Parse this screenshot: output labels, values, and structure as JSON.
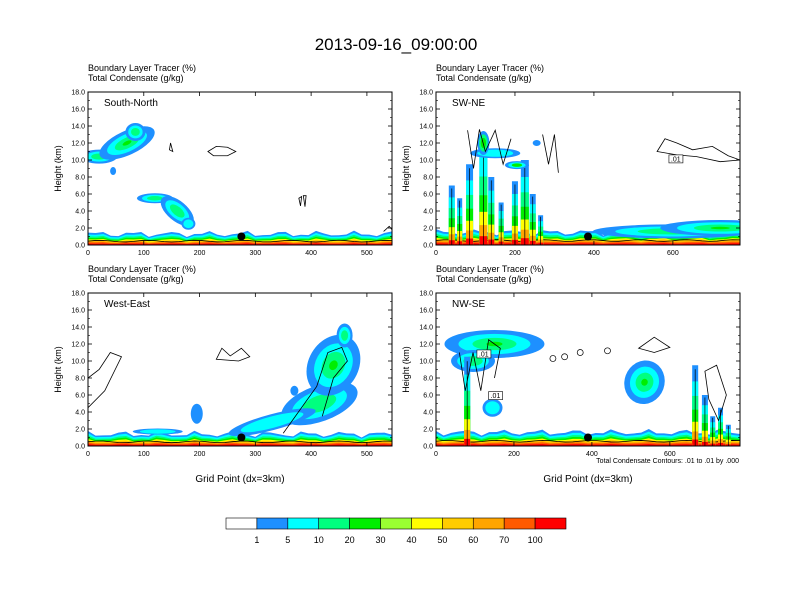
{
  "figure": {
    "title": "2013-09-16_09:00:00",
    "footnote": "Total Condensate Contours: .01 to .01 by .000"
  },
  "colorbar": {
    "labels": [
      "1",
      "5",
      "10",
      "20",
      "30",
      "40",
      "50",
      "60",
      "70",
      "100"
    ],
    "colors": [
      "#ffffff",
      "#1e90ff",
      "#00ffff",
      "#00ff7f",
      "#00ee00",
      "#9aff32",
      "#ffff00",
      "#ffcc00",
      "#ffa500",
      "#ff5a00",
      "#ff0000"
    ]
  },
  "chart_data": [
    {
      "type": "heatmap",
      "label": "South-North",
      "title_lines": [
        "Boundary Layer Tracer   (%)",
        "Total Condensate   (g/kg)"
      ],
      "ylabel": "Height (km)",
      "xlabel": "",
      "xlim": [
        0,
        545
      ],
      "ylim": [
        0,
        18
      ],
      "xticks": [
        0,
        100,
        200,
        300,
        400,
        500
      ],
      "yticks": [
        "0.0",
        "2.0",
        "4.0",
        "6.0",
        "8.0",
        "10.0",
        "12.0",
        "14.0",
        "16.0",
        "18.0"
      ],
      "marker": {
        "x": 275,
        "y": 1.0
      },
      "surface_layer_top_km": 1.3,
      "features": [
        {
          "kind": "tracer_plume",
          "x": [
            0,
            60,
            95
          ],
          "y": [
            10.4,
            11.6,
            13.2
          ],
          "max_pct": 20
        },
        {
          "kind": "tracer_plume",
          "x": [
            100,
            140,
            185
          ],
          "y": [
            5.5,
            5.0,
            1.9
          ],
          "max_pct": 20
        },
        {
          "kind": "cloud_contour",
          "x": [
            215,
            265
          ],
          "y": [
            10.5,
            11.6
          ]
        },
        {
          "kind": "cloud_contour",
          "x": [
            378,
            388
          ],
          "y": [
            4.5,
            5.8
          ]
        }
      ]
    },
    {
      "type": "heatmap",
      "label": "SW-NE",
      "title_lines": [
        "Boundary Layer Tracer   (%)",
        "Total Condensate   (g/kg)"
      ],
      "ylabel": "Height (km)",
      "xlabel": "",
      "xlim": [
        0,
        770
      ],
      "ylim": [
        0,
        18
      ],
      "xticks": [
        0,
        200,
        400,
        600
      ],
      "yticks": [
        "0.0",
        "2.0",
        "4.0",
        "6.0",
        "8.0",
        "10.0",
        "12.0",
        "14.0",
        "16.0",
        "18.0"
      ],
      "marker": {
        "x": 385,
        "y": 1.0
      },
      "surface_layer_top_km": 1.5,
      "contour_labels": [
        ".01"
      ],
      "features": [
        {
          "kind": "convective_columns",
          "x": [
            30,
            260
          ],
          "y": [
            0,
            13.5
          ],
          "max_pct": 100
        },
        {
          "kind": "cloud_contour",
          "x": [
            560,
            770
          ],
          "y": [
            9.5,
            12.5
          ]
        }
      ]
    },
    {
      "type": "heatmap",
      "label": "West-East",
      "title_lines": [
        "Boundary Layer Tracer   (%)",
        "Total Condensate   (g/kg)"
      ],
      "ylabel": "Height (km)",
      "xlabel": "Grid Point (dx=3km)",
      "xlim": [
        0,
        545
      ],
      "ylim": [
        0,
        18
      ],
      "xticks": [
        0,
        100,
        200,
        300,
        400,
        500
      ],
      "yticks": [
        "0.0",
        "2.0",
        "4.0",
        "6.0",
        "8.0",
        "10.0",
        "12.0",
        "14.0",
        "16.0",
        "18.0"
      ],
      "marker": {
        "x": 275,
        "y": 1.0
      },
      "surface_layer_top_km": 1.4,
      "features": [
        {
          "kind": "tracer_plume",
          "x": [
            350,
            470
          ],
          "y": [
            1.5,
            14.5
          ],
          "max_pct": 30
        },
        {
          "kind": "cloud_contour",
          "x": [
            0,
            70
          ],
          "y": [
            4.5,
            11.0
          ]
        },
        {
          "kind": "cloud_contour",
          "x": [
            230,
            290
          ],
          "y": [
            10.0,
            11.5
          ]
        }
      ]
    },
    {
      "type": "heatmap",
      "label": "NW-SE",
      "title_lines": [
        "Boundary Layer Tracer   (%)",
        "Total Condensate   (g/kg)"
      ],
      "ylabel": "Height (km)",
      "xlabel": "Grid Point (dx=3km)",
      "xlim": [
        0,
        780
      ],
      "ylim": [
        0,
        18
      ],
      "xticks": [
        0,
        200,
        400,
        600
      ],
      "yticks": [
        "0.0",
        "2.0",
        "4.0",
        "6.0",
        "8.0",
        "10.0",
        "12.0",
        "14.0",
        "16.0",
        "18.0"
      ],
      "marker": {
        "x": 390,
        "y": 1.0
      },
      "surface_layer_top_km": 1.6,
      "contour_labels": [
        ".01",
        ".01"
      ],
      "features": [
        {
          "kind": "tracer_plume",
          "x": [
            70,
            220
          ],
          "y": [
            9.0,
            13.2
          ],
          "max_pct": 30
        },
        {
          "kind": "tracer_plume",
          "x": [
            490,
            580
          ],
          "y": [
            4.0,
            10.8
          ],
          "max_pct": 30
        },
        {
          "kind": "convective_columns",
          "x": [
            650,
            780
          ],
          "y": [
            0,
            9.5
          ],
          "max_pct": 100
        }
      ]
    }
  ]
}
